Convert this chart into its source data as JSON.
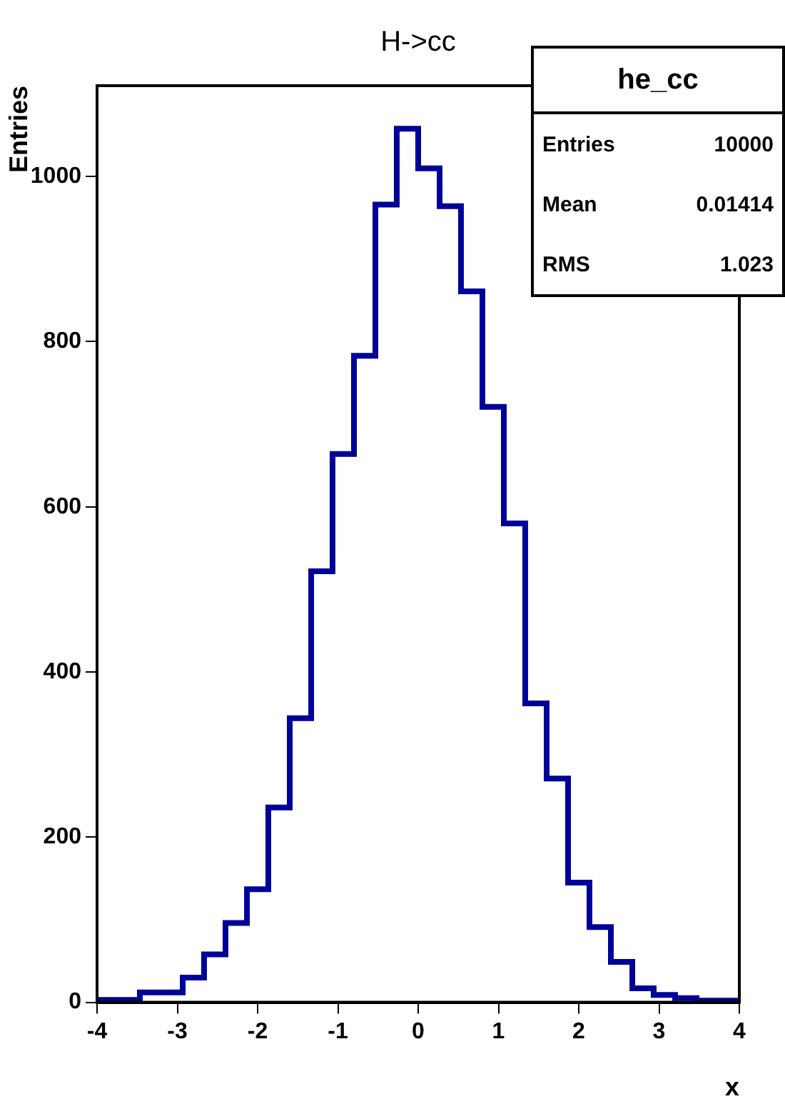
{
  "chart_data": {
    "type": "histogram",
    "title": "H->cc",
    "xlabel": "x",
    "ylabel": "Entries",
    "color": "#000099",
    "bins": [
      -4,
      -3.733,
      -3.467,
      -3.2,
      -2.933,
      -2.667,
      -2.4,
      -2.133,
      -1.867,
      -1.6,
      -1.333,
      -1.067,
      -0.8,
      -0.533,
      -0.267,
      0,
      0.267,
      0.533,
      0.8,
      1.067,
      1.333,
      1.6,
      1.867,
      2.133,
      2.4,
      2.667,
      2.933,
      3.2,
      3.467,
      3.733,
      4
    ],
    "values": [
      3,
      3,
      12,
      12,
      30,
      58,
      96,
      137,
      236,
      344,
      522,
      664,
      783,
      966,
      1058,
      1010,
      964,
      861,
      721,
      580,
      362,
      271,
      145,
      91,
      49,
      17,
      9,
      5,
      2,
      2
    ],
    "xlim": [
      -4,
      4
    ],
    "xticks": [
      -4,
      -3,
      -2,
      -1,
      0,
      1,
      2,
      3,
      4
    ],
    "ylim": [
      0,
      1110
    ],
    "yticks": [
      0,
      200,
      400,
      600,
      800,
      1000
    ],
    "annotations": [
      "he_cc",
      "Entries",
      "10000",
      "Mean",
      "0.01414",
      "RMS",
      "1.023"
    ]
  }
}
